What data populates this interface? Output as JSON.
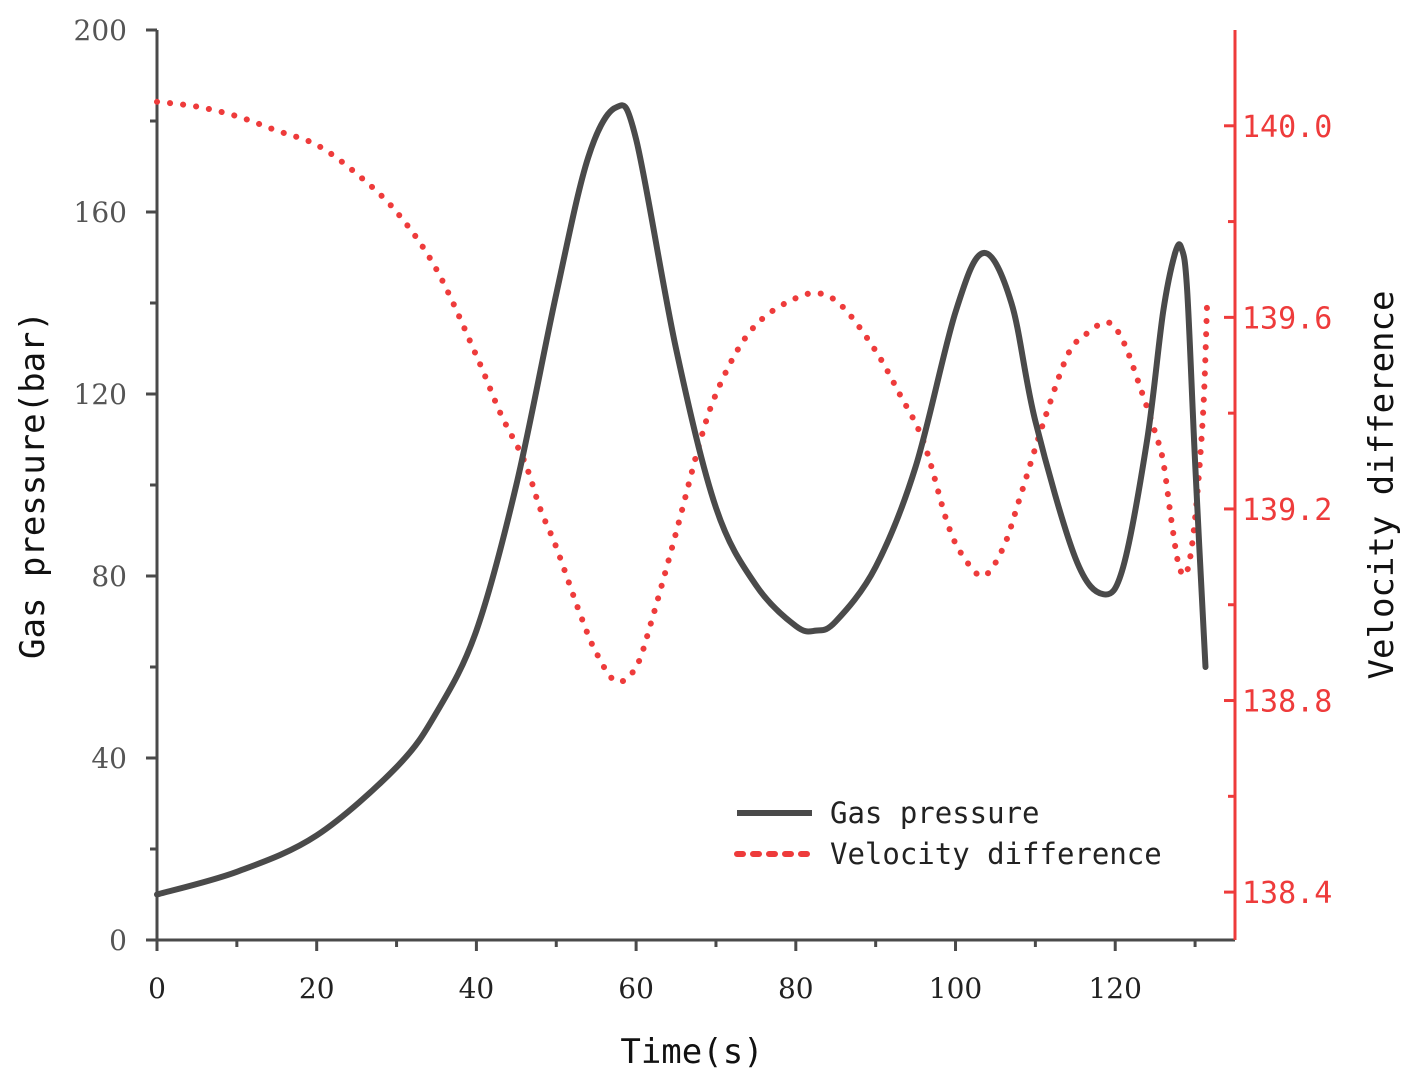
{
  "chart_data": {
    "type": "line",
    "title": "",
    "xlabel": "Time(s)",
    "ylabel": "Gas pressure(bar)",
    "y2label": "Velocity difference",
    "xlim": [
      0,
      135
    ],
    "ylim": [
      0,
      200
    ],
    "y2lim": [
      138.3,
      140.2
    ],
    "x_ticks": [
      0,
      20,
      40,
      60,
      80,
      100,
      120
    ],
    "y_ticks": [
      0,
      40,
      80,
      120,
      160,
      200
    ],
    "y2_ticks": [
      138.4,
      138.8,
      139.2,
      139.6,
      140.0
    ],
    "y2_tick_labels": [
      "138.4",
      "138.8",
      "139.2",
      "139.6",
      "140.0"
    ],
    "legend_position": "bottom-right",
    "series": [
      {
        "name": "Gas pressure",
        "axis": "left",
        "style": "solid",
        "color": "#4a4a4a",
        "x": [
          0,
          10,
          20,
          30,
          35,
          40,
          45,
          50,
          54,
          57.5,
          60,
          65,
          70,
          75,
          80,
          82.5,
          85,
          90,
          95,
          100,
          103.5,
          107,
          110,
          115,
          118.5,
          121,
          124,
          126,
          127.5,
          128.3,
          129,
          130,
          131.3
        ],
        "values": [
          10,
          15,
          23,
          38,
          50,
          68,
          100,
          142,
          172,
          183,
          176,
          130,
          95,
          78,
          69,
          68,
          70,
          82,
          104,
          138,
          151,
          140,
          114,
          84,
          76,
          82,
          110,
          138,
          151,
          152,
          143,
          105,
          60
        ]
      },
      {
        "name": "Velocity difference",
        "axis": "right",
        "style": "dotted",
        "color": "#ee3b3b",
        "x": [
          0,
          5,
          10,
          15,
          20,
          25,
          30,
          35,
          40,
          43,
          46,
          48,
          50,
          53,
          55,
          57.5,
          60,
          62,
          65,
          68,
          70,
          73,
          76,
          80,
          83,
          86,
          90,
          93,
          96,
          99,
          101,
          103.5,
          106,
          108,
          111,
          114,
          116,
          119,
          121,
          123,
          125,
          126,
          127,
          128,
          129,
          130,
          131,
          131.5
        ],
        "values": [
          140.05,
          140.04,
          140.02,
          139.99,
          139.96,
          139.9,
          139.82,
          139.7,
          139.52,
          139.4,
          139.3,
          139.2,
          139.12,
          138.98,
          138.9,
          138.84,
          138.87,
          138.97,
          139.15,
          139.34,
          139.44,
          139.54,
          139.6,
          139.64,
          139.65,
          139.62,
          139.53,
          139.44,
          139.34,
          139.17,
          139.1,
          139.06,
          139.12,
          139.22,
          139.38,
          139.52,
          139.56,
          139.59,
          139.55,
          139.46,
          139.36,
          139.3,
          139.18,
          139.08,
          139.07,
          139.18,
          139.4,
          139.63
        ]
      }
    ]
  }
}
